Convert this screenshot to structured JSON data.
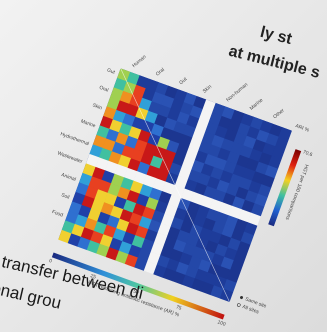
{
  "header": {
    "title_fragments": [
      "ly st",
      "at multiple s"
    ]
  },
  "figure": {
    "group_labels": [
      "Human",
      "Oral",
      "Gut",
      "Skin",
      "Non-human",
      "Marine",
      "Other"
    ],
    "row_labels": [
      "Gut",
      "Oral",
      "Skin",
      "Marine",
      "Hydrothermal",
      "Wastewater",
      "Animal",
      "Soil",
      "Food"
    ],
    "colorbar": {
      "label": "HGT per 100 comparisons",
      "max_label": "70.6"
    },
    "ar_bar": {
      "label": "HGT remaining antibiotic resistance (AR) %",
      "ticks": [
        "0",
        "25",
        "50",
        "75",
        "100"
      ]
    },
    "ar_column": "ARI %",
    "legend": [
      "Same site",
      "All sites"
    ]
  },
  "body": {
    "lines": [
      "transfer between di",
      "onal grou"
    ]
  }
}
